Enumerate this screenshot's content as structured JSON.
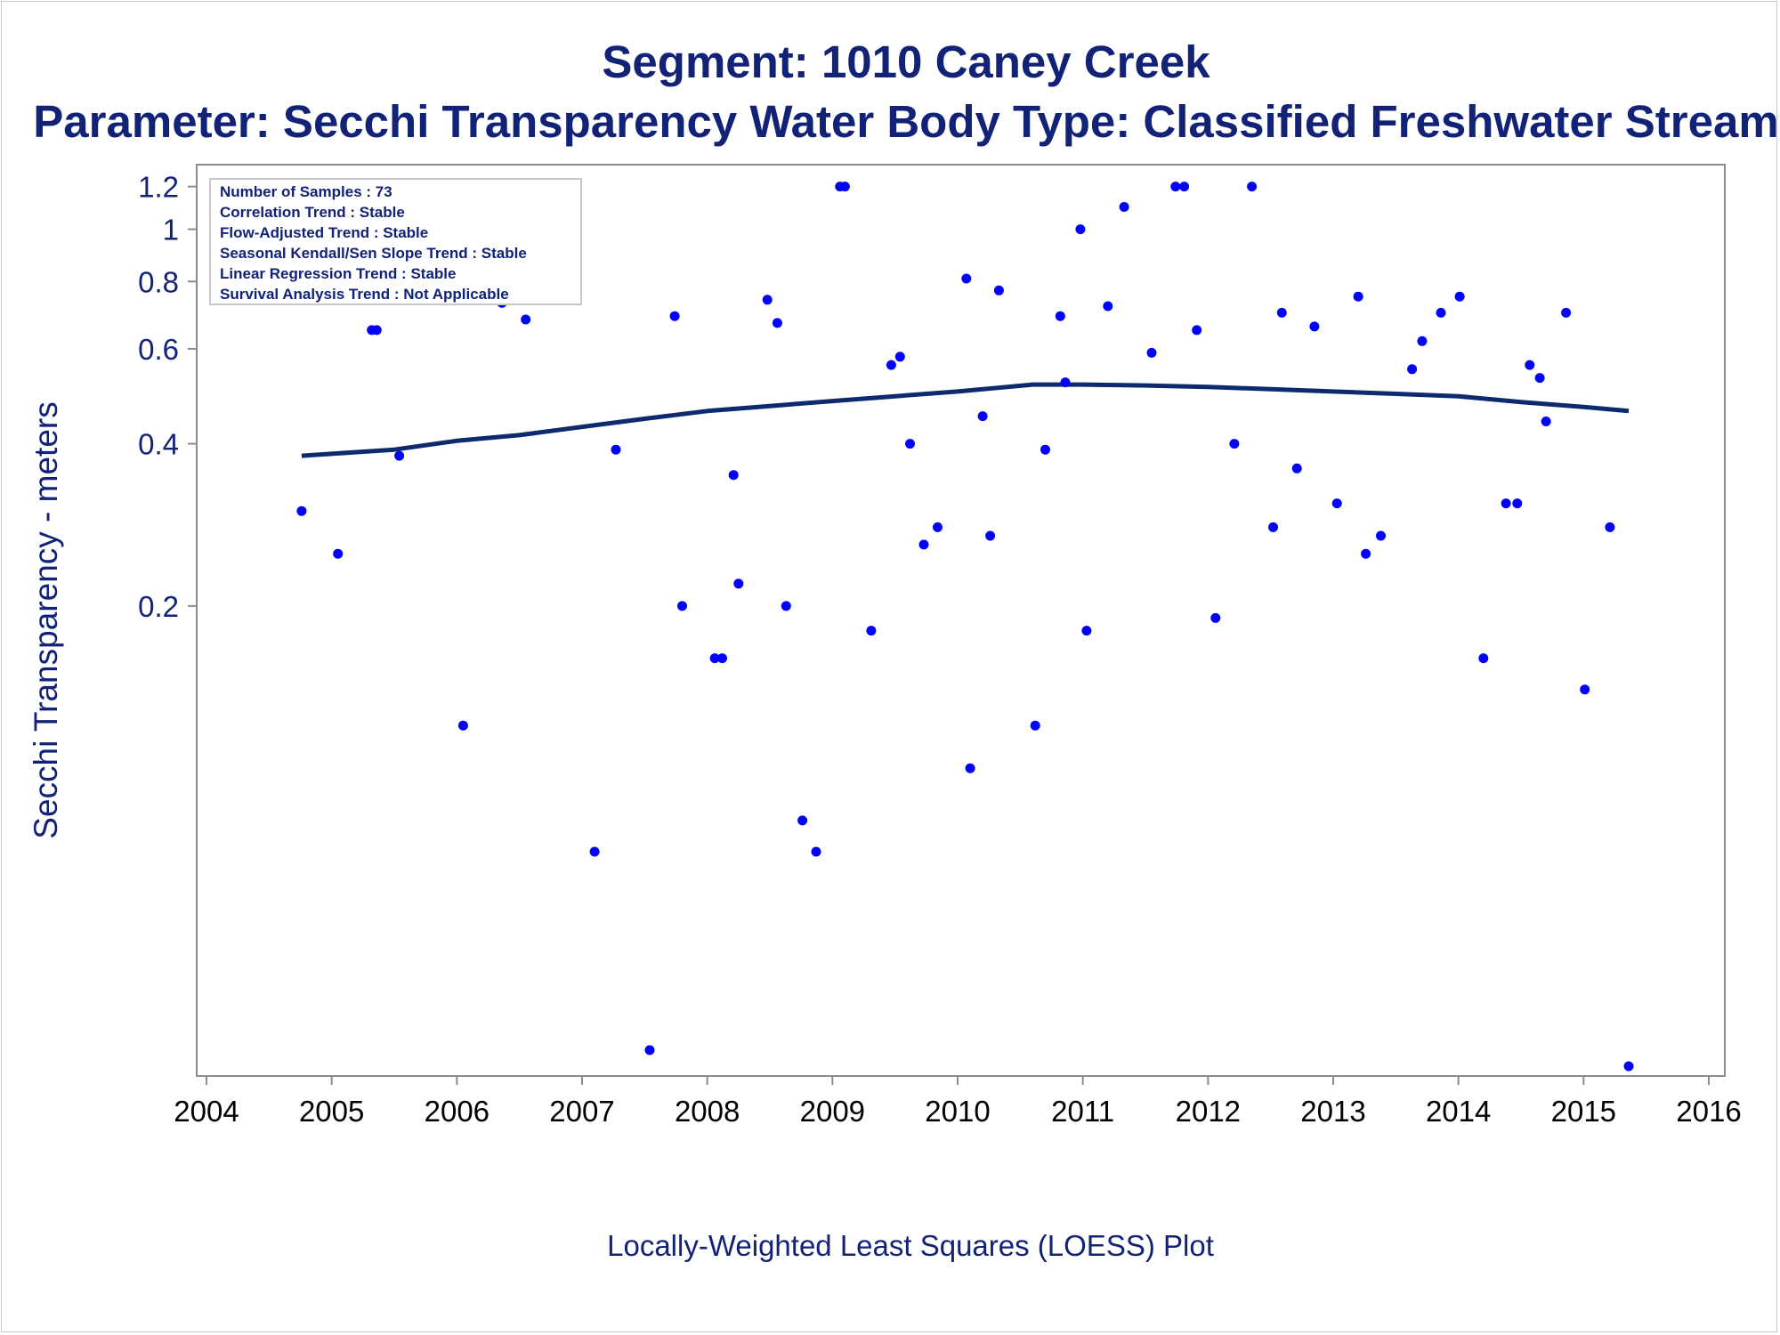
{
  "titles": {
    "line1": "Segment: 1010  Caney Creek",
    "line2": "Parameter: Secchi Transparency   Water Body Type: Classified Freshwater Stream"
  },
  "footnote": "Locally-Weighted Least Squares (LOESS) Plot",
  "stats_box": [
    "Number of Samples : 73",
    "Correlation Trend : Stable",
    "Flow-Adjusted Trend : Stable",
    "Seasonal Kendall/Sen Slope Trend : Stable",
    "Linear Regression Trend : Stable",
    "Survival Analysis Trend : Not Applicable"
  ],
  "colors": {
    "text": "#112277",
    "points": "#0000ff",
    "loess": "#0d2a6e",
    "axis": "#8c8c8c"
  },
  "chart_data": {
    "type": "scatter",
    "title": "Segment: 1010  Caney Creek",
    "subtitle": "Parameter: Secchi Transparency   Water Body Type: Classified Freshwater Stream",
    "xlabel": "",
    "ylabel": "Secchi Transparency - meters",
    "y_scale": "log",
    "xlim": [
      2004,
      2016
    ],
    "ylim": [
      0.028,
      1.24
    ],
    "x_ticks": [
      2004,
      2005,
      2006,
      2007,
      2008,
      2009,
      2010,
      2011,
      2012,
      2013,
      2014,
      2015,
      2016
    ],
    "y_ticks": [
      0.2,
      0.4,
      0.6,
      0.8,
      1,
      1.2
    ],
    "grid": false,
    "series": [
      {
        "kind": "points",
        "points": [
          [
            2004.76,
            0.3
          ],
          [
            2005.05,
            0.25
          ],
          [
            2005.32,
            0.65
          ],
          [
            2005.36,
            0.65
          ],
          [
            2005.54,
            0.38
          ],
          [
            2005.8,
            0.84
          ],
          [
            2006.05,
            0.12
          ],
          [
            2006.36,
            0.73
          ],
          [
            2006.55,
            0.68
          ],
          [
            2007.1,
            0.07
          ],
          [
            2007.27,
            0.39
          ],
          [
            2007.54,
            0.03
          ],
          [
            2007.74,
            0.69
          ],
          [
            2007.8,
            0.2
          ],
          [
            2008.06,
            0.16
          ],
          [
            2008.12,
            0.16
          ],
          [
            2008.21,
            0.35
          ],
          [
            2008.25,
            0.22
          ],
          [
            2008.48,
            0.74
          ],
          [
            2008.56,
            0.67
          ],
          [
            2008.63,
            0.2
          ],
          [
            2008.76,
            0.08
          ],
          [
            2008.87,
            0.07
          ],
          [
            2009.06,
            1.2
          ],
          [
            2009.1,
            1.2
          ],
          [
            2009.31,
            0.18
          ],
          [
            2009.47,
            0.56
          ],
          [
            2009.54,
            0.58
          ],
          [
            2009.62,
            0.4
          ],
          [
            2009.73,
            0.26
          ],
          [
            2009.84,
            0.28
          ],
          [
            2010.07,
            0.81
          ],
          [
            2010.1,
            0.1
          ],
          [
            2010.2,
            0.45
          ],
          [
            2010.26,
            0.27
          ],
          [
            2010.33,
            0.77
          ],
          [
            2010.62,
            0.12
          ],
          [
            2010.7,
            0.39
          ],
          [
            2010.82,
            0.69
          ],
          [
            2010.86,
            0.52
          ],
          [
            2010.98,
            1.0
          ],
          [
            2011.03,
            0.18
          ],
          [
            2011.2,
            0.72
          ],
          [
            2011.33,
            1.1
          ],
          [
            2011.55,
            0.59
          ],
          [
            2011.74,
            1.2
          ],
          [
            2011.81,
            1.2
          ],
          [
            2011.91,
            0.65
          ],
          [
            2012.06,
            0.19
          ],
          [
            2012.21,
            0.4
          ],
          [
            2012.35,
            1.2
          ],
          [
            2012.52,
            0.28
          ],
          [
            2012.59,
            0.7
          ],
          [
            2012.71,
            0.36
          ],
          [
            2012.85,
            0.66
          ],
          [
            2013.03,
            0.31
          ],
          [
            2013.2,
            0.75
          ],
          [
            2013.26,
            0.25
          ],
          [
            2013.38,
            0.27
          ],
          [
            2013.63,
            0.55
          ],
          [
            2013.71,
            0.62
          ],
          [
            2013.86,
            0.7
          ],
          [
            2014.01,
            0.75
          ],
          [
            2014.2,
            0.16
          ],
          [
            2014.38,
            0.31
          ],
          [
            2014.47,
            0.31
          ],
          [
            2014.57,
            0.56
          ],
          [
            2014.65,
            0.53
          ],
          [
            2014.7,
            0.44
          ],
          [
            2014.86,
            0.7
          ],
          [
            2015.01,
            0.14
          ],
          [
            2015.21,
            0.28
          ],
          [
            2015.36,
            0.028
          ]
        ]
      },
      {
        "kind": "loess",
        "points": [
          [
            2004.76,
            0.38
          ],
          [
            2005.5,
            0.39
          ],
          [
            2006.0,
            0.405
          ],
          [
            2006.5,
            0.415
          ],
          [
            2007.0,
            0.43
          ],
          [
            2007.5,
            0.445
          ],
          [
            2008.0,
            0.46
          ],
          [
            2008.5,
            0.47
          ],
          [
            2009.0,
            0.48
          ],
          [
            2009.5,
            0.49
          ],
          [
            2010.0,
            0.5
          ],
          [
            2010.6,
            0.515
          ],
          [
            2011.0,
            0.515
          ],
          [
            2011.5,
            0.513
          ],
          [
            2012.0,
            0.51
          ],
          [
            2012.5,
            0.505
          ],
          [
            2013.0,
            0.5
          ],
          [
            2013.5,
            0.495
          ],
          [
            2014.0,
            0.49
          ],
          [
            2014.5,
            0.478
          ],
          [
            2015.0,
            0.468
          ],
          [
            2015.36,
            0.46
          ]
        ]
      }
    ]
  }
}
